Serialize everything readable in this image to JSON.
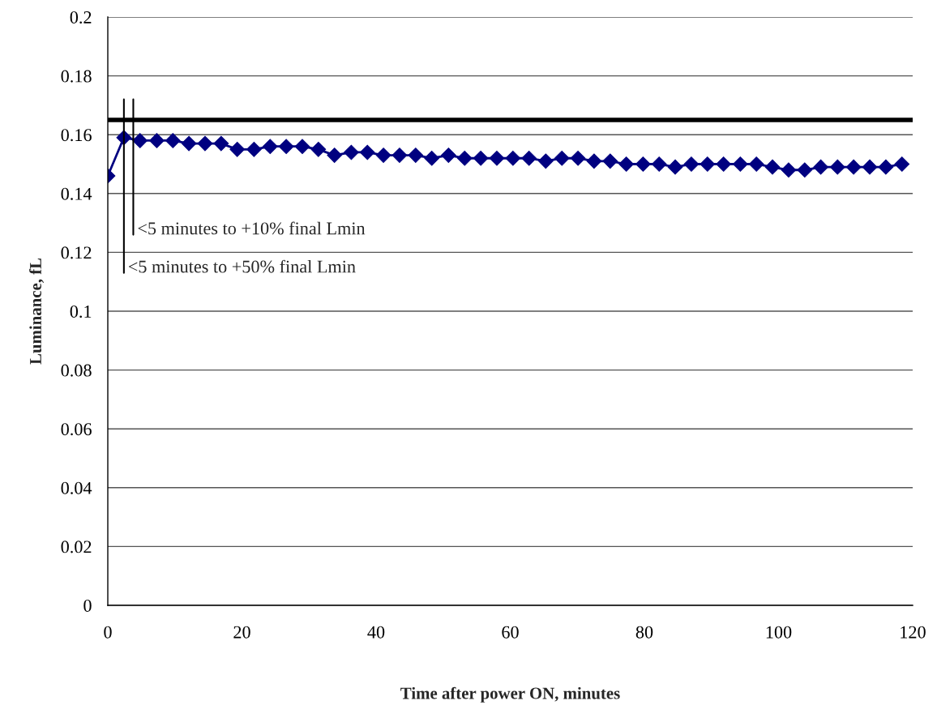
{
  "chart_data": {
    "type": "line",
    "xlabel": "Time after power ON, minutes",
    "ylabel": "Luminance, fL",
    "x": [
      0,
      2.4,
      4.8,
      7.3,
      9.7,
      12.1,
      14.5,
      16.9,
      19.3,
      21.8,
      24.2,
      26.6,
      29,
      31.4,
      33.8,
      36.3,
      38.7,
      41.1,
      43.5,
      45.9,
      48.3,
      50.8,
      53.2,
      55.6,
      58,
      60.4,
      62.8,
      65.3,
      67.7,
      70.1,
      72.5,
      74.9,
      77.3,
      79.8,
      82.2,
      84.6,
      87,
      89.4,
      91.8,
      94.3,
      96.7,
      99.1,
      101.5,
      103.9,
      106.3,
      108.8,
      111.2,
      113.6,
      116,
      118.4
    ],
    "series": [
      {
        "color": "#000080",
        "values": [
          0.146,
          0.159,
          0.158,
          0.158,
          0.158,
          0.157,
          0.157,
          0.157,
          0.155,
          0.155,
          0.156,
          0.156,
          0.156,
          0.155,
          0.153,
          0.154,
          0.154,
          0.153,
          0.153,
          0.153,
          0.152,
          0.153,
          0.152,
          0.152,
          0.152,
          0.152,
          0.152,
          0.151,
          0.152,
          0.152,
          0.151,
          0.151,
          0.15,
          0.15,
          0.15,
          0.149,
          0.15,
          0.15,
          0.15,
          0.15,
          0.15,
          0.149,
          0.148,
          0.148,
          0.149,
          0.149,
          0.149,
          0.149,
          0.149,
          0.15
        ]
      }
    ],
    "marker": "diamond",
    "line_style": "solid",
    "xlim": [
      0,
      120
    ],
    "xticks": [
      0,
      20,
      40,
      60,
      80,
      100,
      120
    ],
    "ylim": [
      0,
      0.2
    ],
    "yticks": [
      0,
      0.02,
      0.04,
      0.06,
      0.08,
      0.1,
      0.12,
      0.14,
      0.16,
      0.18,
      0.2
    ],
    "grid": "y",
    "legend": false,
    "ref_lines": [
      {
        "axis": "y",
        "value": 0.165,
        "color": "#000000"
      },
      {
        "axis": "x",
        "value": 3.8,
        "label": "<5 minutes to +10% final Lmin",
        "color": "#000000"
      },
      {
        "axis": "x",
        "value": 2.4,
        "label": "<5 minutes to +50% final Lmin",
        "color": "#000000"
      }
    ]
  }
}
